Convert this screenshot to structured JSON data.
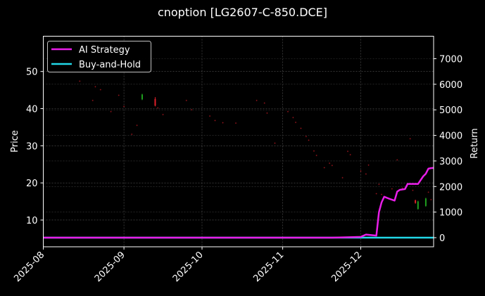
{
  "chart_data": {
    "type": "line",
    "title": "cnoption [LG2607-C-850.DCE]",
    "xlabel": "",
    "ylabel": "Price",
    "y2label": "Return",
    "x_ticks": [
      "2025-08",
      "2025-09",
      "2025-10",
      "2025-11",
      "2025-12"
    ],
    "y_ticks": [
      10,
      20,
      30,
      40,
      50
    ],
    "y2_ticks": [
      0,
      1000,
      2000,
      3000,
      4000,
      5000,
      6000,
      7000
    ],
    "ylim": [
      2.8,
      59.5
    ],
    "y2lim": [
      -357,
      7880
    ],
    "grid": true,
    "legend_position": "upper left",
    "legend": [
      "AI Strategy",
      "Buy-and-Hold"
    ],
    "colors": {
      "ai_strategy": "#e81ee8",
      "buy_and_hold": "#22d8e8",
      "candle_up": "#1fa01f",
      "candle_down": "#e0202a",
      "background": "#000000",
      "axes": "#ffffff",
      "grid": "#555555"
    },
    "price_candles": [
      {
        "date": "2025-08-15",
        "open": 47.5,
        "close": 47.3,
        "high": 47.6,
        "low": 47.2
      },
      {
        "date": "2025-08-20",
        "open": 42.3,
        "close": 42.1,
        "high": 42.4,
        "low": 42.0
      },
      {
        "date": "2025-08-21",
        "open": 46.0,
        "close": 45.8,
        "high": 46.1,
        "low": 45.7
      },
      {
        "date": "2025-08-23",
        "open": 45.2,
        "close": 45.0,
        "high": 45.3,
        "low": 44.9
      },
      {
        "date": "2025-08-27",
        "open": 39.3,
        "close": 39.1,
        "high": 39.4,
        "low": 39.0
      },
      {
        "date": "2025-08-30",
        "open": 43.7,
        "close": 43.5,
        "high": 43.8,
        "low": 43.4
      },
      {
        "date": "2025-09-01",
        "open": 40.7,
        "close": 40.5,
        "high": 40.8,
        "low": 40.4
      },
      {
        "date": "2025-09-04",
        "open": 33.2,
        "close": 33.0,
        "high": 33.3,
        "low": 32.9
      },
      {
        "date": "2025-09-06",
        "open": 35.6,
        "close": 35.4,
        "high": 35.7,
        "low": 35.3
      },
      {
        "date": "2025-09-08",
        "open": 42.5,
        "close": 43.8,
        "high": 44.0,
        "low": 42.3
      },
      {
        "date": "2025-09-13",
        "open": 42.6,
        "close": 40.8,
        "high": 43.1,
        "low": 40.6
      },
      {
        "date": "2025-09-14",
        "open": 40.3,
        "close": 40.1,
        "high": 40.4,
        "low": 40.0
      },
      {
        "date": "2025-09-16",
        "open": 38.5,
        "close": 38.3,
        "high": 38.6,
        "low": 38.2
      },
      {
        "date": "2025-09-25",
        "open": 42.3,
        "close": 42.1,
        "high": 42.4,
        "low": 42.0
      },
      {
        "date": "2025-09-27",
        "open": 39.8,
        "close": 39.6,
        "high": 39.9,
        "low": 39.5
      },
      {
        "date": "2025-10-04",
        "open": 38.1,
        "close": 37.9,
        "high": 38.2,
        "low": 37.8
      },
      {
        "date": "2025-10-06",
        "open": 36.9,
        "close": 36.7,
        "high": 37.0,
        "low": 36.6
      },
      {
        "date": "2025-10-09",
        "open": 36.3,
        "close": 36.1,
        "high": 36.4,
        "low": 36.0
      },
      {
        "date": "2025-10-14",
        "open": 36.2,
        "close": 36.0,
        "high": 36.3,
        "low": 35.9
      },
      {
        "date": "2025-10-22",
        "open": 42.3,
        "close": 42.1,
        "high": 42.4,
        "low": 42.0
      },
      {
        "date": "2025-10-25",
        "open": 41.6,
        "close": 41.4,
        "high": 41.7,
        "low": 41.3
      },
      {
        "date": "2025-10-26",
        "open": 38.9,
        "close": 38.7,
        "high": 39.0,
        "low": 38.6
      },
      {
        "date": "2025-10-29",
        "open": 30.8,
        "close": 30.6,
        "high": 30.9,
        "low": 30.5
      },
      {
        "date": "2025-11-03",
        "open": 39.3,
        "close": 39.1,
        "high": 39.4,
        "low": 39.0
      },
      {
        "date": "2025-11-05",
        "open": 37.7,
        "close": 37.5,
        "high": 37.8,
        "low": 37.4
      },
      {
        "date": "2025-11-06",
        "open": 36.4,
        "close": 36.2,
        "high": 36.5,
        "low": 36.1
      },
      {
        "date": "2025-11-08",
        "open": 34.8,
        "close": 34.6,
        "high": 34.9,
        "low": 34.5
      },
      {
        "date": "2025-11-10",
        "open": 32.6,
        "close": 32.4,
        "high": 32.7,
        "low": 32.3
      },
      {
        "date": "2025-11-11",
        "open": 31.6,
        "close": 31.4,
        "high": 31.7,
        "low": 31.3
      },
      {
        "date": "2025-11-13",
        "open": 28.7,
        "close": 28.5,
        "high": 28.8,
        "low": 28.4
      },
      {
        "date": "2025-11-14",
        "open": 27.5,
        "close": 27.3,
        "high": 27.6,
        "low": 27.2
      },
      {
        "date": "2025-11-17",
        "open": 24.2,
        "close": 24.0,
        "high": 24.3,
        "low": 23.9
      },
      {
        "date": "2025-11-19",
        "open": 25.4,
        "close": 25.2,
        "high": 25.5,
        "low": 25.1
      },
      {
        "date": "2025-11-20",
        "open": 24.8,
        "close": 24.6,
        "high": 24.9,
        "low": 24.5
      },
      {
        "date": "2025-11-24",
        "open": 21.5,
        "close": 21.3,
        "high": 21.6,
        "low": 21.2
      },
      {
        "date": "2025-11-26",
        "open": 28.6,
        "close": 28.4,
        "high": 28.7,
        "low": 28.3
      },
      {
        "date": "2025-11-27",
        "open": 27.7,
        "close": 27.5,
        "high": 27.8,
        "low": 27.4
      },
      {
        "date": "2025-12-01",
        "open": 23.3,
        "close": 23.1,
        "high": 23.4,
        "low": 23.0
      },
      {
        "date": "2025-12-03",
        "open": 22.5,
        "close": 22.3,
        "high": 22.6,
        "low": 22.2
      },
      {
        "date": "2025-12-04",
        "open": 24.9,
        "close": 24.7,
        "high": 25.0,
        "low": 24.6
      },
      {
        "date": "2025-12-07",
        "open": 17.2,
        "close": 17.0,
        "high": 17.3,
        "low": 16.9
      },
      {
        "date": "2025-12-08",
        "open": 19.7,
        "close": 19.5,
        "high": 19.8,
        "low": 19.4
      },
      {
        "date": "2025-12-09",
        "open": 17.0,
        "close": 16.8,
        "high": 17.1,
        "low": 16.7
      },
      {
        "date": "2025-12-13",
        "open": 18.5,
        "close": 18.3,
        "high": 18.6,
        "low": 18.2
      },
      {
        "date": "2025-12-15",
        "open": 26.3,
        "close": 26.1,
        "high": 26.4,
        "low": 26.0
      },
      {
        "date": "2025-12-17",
        "open": 18.7,
        "close": 18.5,
        "high": 18.8,
        "low": 18.4
      },
      {
        "date": "2025-12-20",
        "open": 32.0,
        "close": 31.8,
        "high": 32.1,
        "low": 31.7
      },
      {
        "date": "2025-12-21",
        "open": 18.1,
        "close": 17.9,
        "high": 18.2,
        "low": 17.8
      },
      {
        "date": "2025-12-22",
        "open": 15.3,
        "close": 14.6,
        "high": 15.5,
        "low": 14.4
      },
      {
        "date": "2025-12-23",
        "open": 13.0,
        "close": 15.0,
        "high": 15.2,
        "low": 12.8
      },
      {
        "date": "2025-12-26",
        "open": 13.8,
        "close": 15.8,
        "high": 16.0,
        "low": 13.6
      },
      {
        "date": "2025-12-27",
        "open": 17.6,
        "close": 17.4,
        "high": 17.7,
        "low": 17.3
      },
      {
        "date": "2025-12-28",
        "open": 15.6,
        "close": 15.4,
        "high": 15.7,
        "low": 15.3
      }
    ],
    "series": [
      {
        "name": "AI Strategy",
        "axis": "right",
        "x": [
          "2025-08-01",
          "2025-11-20",
          "2025-11-28",
          "2025-12-01",
          "2025-12-03",
          "2025-12-05",
          "2025-12-07",
          "2025-12-08",
          "2025-12-09",
          "2025-12-10",
          "2025-12-12",
          "2025-12-14",
          "2025-12-15",
          "2025-12-16",
          "2025-12-18",
          "2025-12-19",
          "2025-12-21",
          "2025-12-23",
          "2025-12-25",
          "2025-12-26",
          "2025-12-27",
          "2025-12-28",
          "2025-12-29"
        ],
        "values": [
          0,
          0,
          20,
          30,
          120,
          100,
          80,
          1000,
          1380,
          1600,
          1520,
          1450,
          1800,
          1870,
          1900,
          2100,
          2100,
          2100,
          2400,
          2500,
          2700,
          2720,
          2730
        ]
      },
      {
        "name": "Buy-and-Hold",
        "axis": "right",
        "x": [
          "2025-08-01",
          "2025-12-29"
        ],
        "values": [
          0,
          0
        ]
      }
    ]
  }
}
